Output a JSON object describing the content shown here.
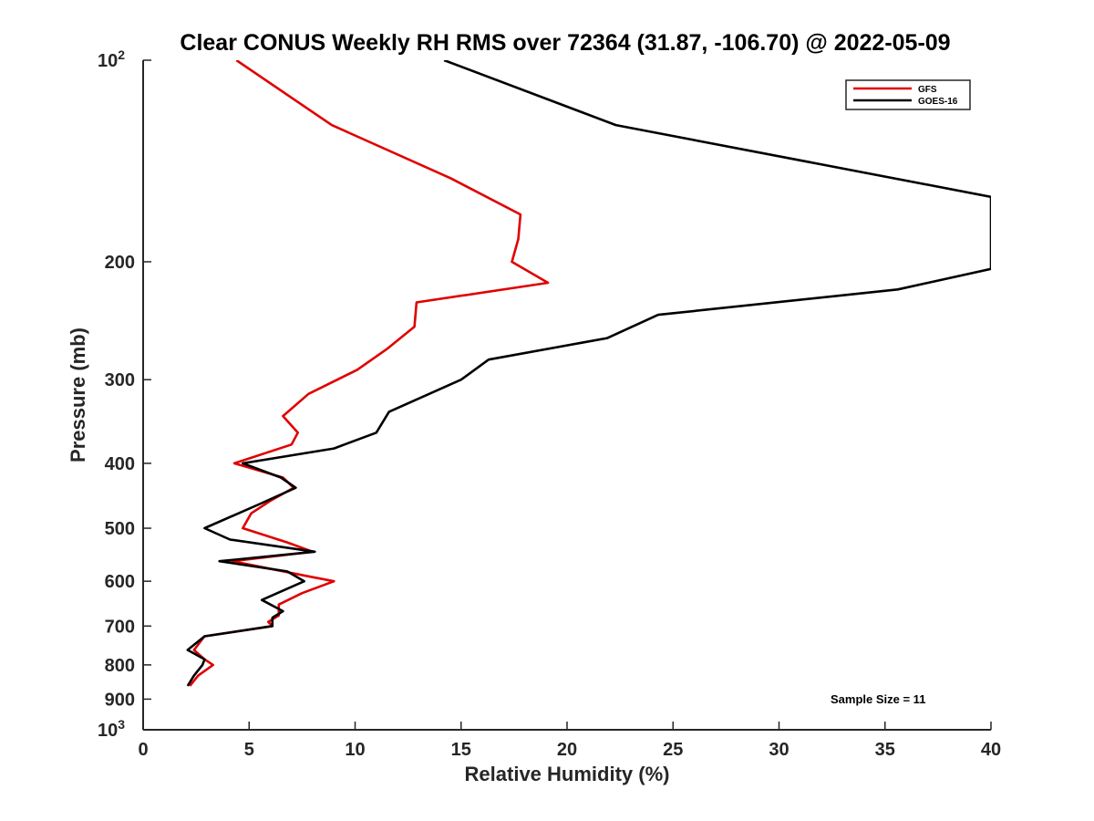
{
  "chart_data": {
    "type": "line",
    "title": "Clear CONUS Weekly RH RMS over 72364 (31.87, -106.70) @ 2022-05-09",
    "xlabel": "Relative Humidity (%)",
    "ylabel": "Pressure (mb)",
    "xlim": [
      0,
      40
    ],
    "ylim": [
      100,
      1000
    ],
    "y_scale": "log",
    "y_reversed": true,
    "grid": false,
    "legend_position": "top-right",
    "x_ticks": [
      0,
      5,
      10,
      15,
      20,
      25,
      30,
      35,
      40
    ],
    "x_tick_labels": [
      "0",
      "5",
      "10",
      "15",
      "20",
      "25",
      "30",
      "35",
      "40"
    ],
    "y_ticks": [
      100,
      200,
      300,
      400,
      500,
      600,
      700,
      800,
      900,
      1000
    ],
    "y_tick_labels": [
      {
        "base": "10",
        "exp": "2"
      },
      {
        "base": "200",
        "exp": ""
      },
      {
        "base": "300",
        "exp": ""
      },
      {
        "base": "400",
        "exp": ""
      },
      {
        "base": "500",
        "exp": ""
      },
      {
        "base": "600",
        "exp": ""
      },
      {
        "base": "700",
        "exp": ""
      },
      {
        "base": "800",
        "exp": ""
      },
      {
        "base": "900",
        "exp": ""
      },
      {
        "base": "10",
        "exp": "3"
      }
    ],
    "series": [
      {
        "name": "GFS",
        "color": "#e00000",
        "points": [
          [
            4.4,
            100
          ],
          [
            8.9,
            125
          ],
          [
            14.5,
            150
          ],
          [
            17.8,
            170
          ],
          [
            17.7,
            185
          ],
          [
            17.4,
            200
          ],
          [
            19.1,
            215
          ],
          [
            12.9,
            230
          ],
          [
            12.8,
            250
          ],
          [
            11.5,
            270
          ],
          [
            10.1,
            290
          ],
          [
            7.8,
            315
          ],
          [
            6.6,
            340
          ],
          [
            7.3,
            360
          ],
          [
            7.0,
            375
          ],
          [
            4.3,
            400
          ],
          [
            6.6,
            420
          ],
          [
            7.1,
            435
          ],
          [
            6.0,
            455
          ],
          [
            5.1,
            475
          ],
          [
            4.7,
            500
          ],
          [
            6.8,
            525
          ],
          [
            8.0,
            542
          ],
          [
            4.2,
            560
          ],
          [
            7.8,
            590
          ],
          [
            9.0,
            600
          ],
          [
            7.5,
            625
          ],
          [
            6.4,
            650
          ],
          [
            6.4,
            675
          ],
          [
            5.9,
            690
          ],
          [
            6.1,
            700
          ],
          [
            2.9,
            725
          ],
          [
            2.4,
            760
          ],
          [
            2.9,
            785
          ],
          [
            3.3,
            800
          ],
          [
            2.6,
            830
          ],
          [
            2.2,
            860
          ]
        ]
      },
      {
        "name": "GOES-16",
        "color": "#000000",
        "points": [
          [
            14.2,
            100
          ],
          [
            22.3,
            125
          ],
          [
            40.0,
            160
          ],
          [
            40.0,
            205
          ],
          [
            35.6,
            220
          ],
          [
            24.3,
            240
          ],
          [
            21.9,
            260
          ],
          [
            16.3,
            280
          ],
          [
            15.0,
            300
          ],
          [
            11.6,
            335
          ],
          [
            11.0,
            360
          ],
          [
            9.0,
            380
          ],
          [
            4.7,
            400
          ],
          [
            6.5,
            420
          ],
          [
            7.2,
            435
          ],
          [
            5.5,
            460
          ],
          [
            2.9,
            500
          ],
          [
            4.1,
            520
          ],
          [
            8.1,
            542
          ],
          [
            3.6,
            560
          ],
          [
            6.8,
            580
          ],
          [
            7.6,
            600
          ],
          [
            5.6,
            640
          ],
          [
            6.6,
            665
          ],
          [
            6.1,
            680
          ],
          [
            6.1,
            700
          ],
          [
            2.9,
            725
          ],
          [
            2.1,
            760
          ],
          [
            2.9,
            785
          ],
          [
            2.8,
            800
          ],
          [
            2.4,
            830
          ],
          [
            2.1,
            860
          ]
        ]
      }
    ],
    "annotation": "Sample Size = 11"
  }
}
